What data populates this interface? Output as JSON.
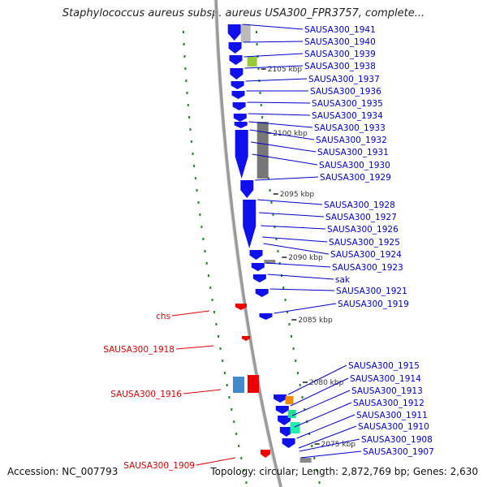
{
  "title": "Staphylococcus aureus subsp. aureus USA300_FPR3757, complete...",
  "footer": {
    "accession": "Accession: NC_007793",
    "summary": "Topology: circular; Length: 2,872,769 bp; Genes: 2,630"
  },
  "colors": {
    "forward_label": "#0000cc",
    "reverse_label": "#dd0000",
    "forward_gene": "#1010ee",
    "reverse_gene": "#ee0000",
    "tick": "#1a8a1a",
    "backbone": "#888888"
  },
  "scale_marks": [
    "2105 kbp",
    "2100 kbp",
    "2095 kbp",
    "2090 kbp",
    "2085 kbp",
    "2080 kbp",
    "2075 kbp"
  ],
  "forward_labels": [
    "SAUSA300_1941",
    "SAUSA300_1940",
    "SAUSA300_1939",
    "SAUSA300_1938",
    "SAUSA300_1937",
    "SAUSA300_1936",
    "SAUSA300_1935",
    "SAUSA300_1934",
    "SAUSA300_1933",
    "SAUSA300_1932",
    "SAUSA300_1931",
    "SAUSA300_1930",
    "SAUSA300_1929",
    "SAUSA300_1928",
    "SAUSA300_1927",
    "SAUSA300_1926",
    "SAUSA300_1925",
    "SAUSA300_1924",
    "SAUSA300_1923",
    "sak",
    "SAUSA300_1921",
    "SAUSA300_1919",
    "SAUSA300_1915",
    "SAUSA300_1914",
    "SAUSA300_1913",
    "SAUSA300_1912",
    "SAUSA300_1911",
    "SAUSA300_1910",
    "SAUSA300_1908",
    "SAUSA300_1907"
  ],
  "reverse_labels": [
    "chs",
    "SAUSA300_1918",
    "SAUSA300_1916",
    "SAUSA300_1909"
  ]
}
